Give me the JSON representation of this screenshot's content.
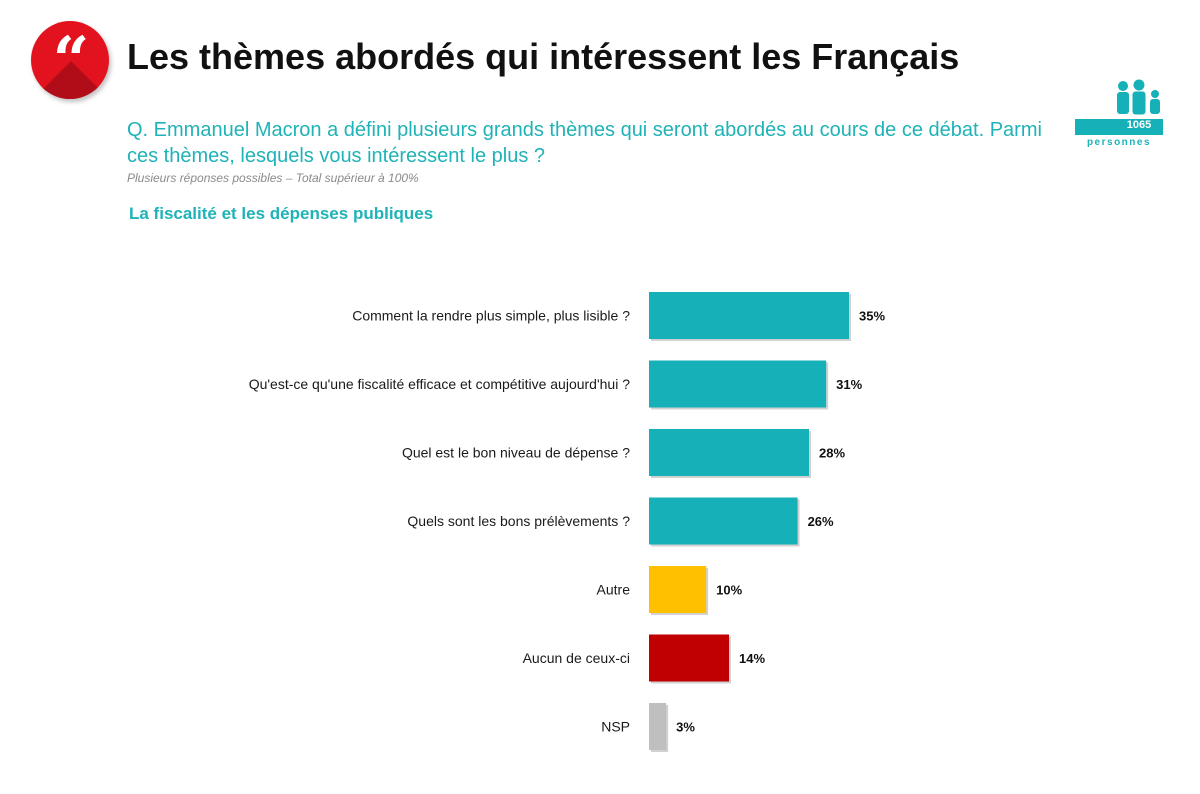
{
  "header": {
    "title": "Les thèmes abordés qui intéressent les Français",
    "question": "Q. Emmanuel Macron a défini plusieurs grands thèmes qui seront abordés au cours de ce débat. Parmi ces thèmes, lesquels vous intéressent le plus ?",
    "note": "Plusieurs réponses possibles – Total supérieur à 100%",
    "subtitle": "La fiscalité et les dépenses publiques"
  },
  "sample": {
    "count": "1065",
    "label": "personnes",
    "icon": "people-group-icon"
  },
  "badge": {
    "icon": "quote-icon",
    "glyph": "“"
  },
  "colors": {
    "teal": "#16b0b8",
    "yellow": "#ffc000",
    "red": "#c00000",
    "gray": "#bfbfbf",
    "badge_red": "#e3121f"
  },
  "chart_data": {
    "type": "bar",
    "orientation": "horizontal",
    "title": "La fiscalité et les dépenses publiques",
    "xlim": [
      0,
      35
    ],
    "grid": false,
    "categories": [
      "Comment la rendre plus simple, plus lisible ?",
      "Qu'est-ce qu'une fiscalité efficace et compétitive aujourd'hui ?",
      "Quel est le bon niveau de dépense ?",
      "Quels sont les bons prélèvements ?",
      "Autre",
      "Aucun de ceux-ci",
      "NSP"
    ],
    "values": [
      35,
      31,
      28,
      26,
      10,
      14,
      3
    ],
    "value_labels": [
      "35%",
      "31%",
      "28%",
      "26%",
      "10%",
      "14%",
      "3%"
    ],
    "bar_colors": [
      "#16b0b8",
      "#16b0b8",
      "#16b0b8",
      "#16b0b8",
      "#ffc000",
      "#c00000",
      "#bfbfbf"
    ]
  }
}
